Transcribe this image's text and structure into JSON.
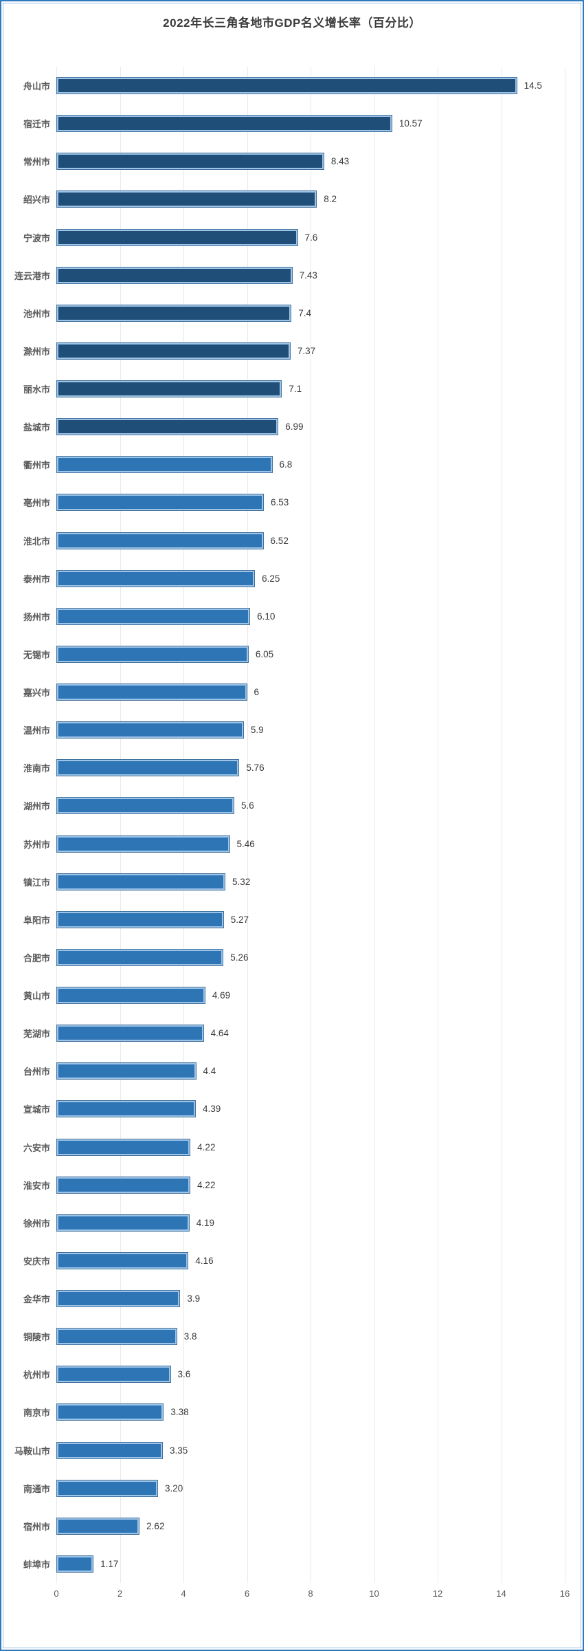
{
  "chart_data": {
    "type": "bar",
    "orientation": "horizontal",
    "title": "2022年长三角各地市GDP名义增长率（百分比）",
    "categories": [
      "舟山市",
      "宿迁市",
      "常州市",
      "绍兴市",
      "宁波市",
      "连云港市",
      "池州市",
      "滁州市",
      "丽水市",
      "盐城市",
      "衢州市",
      "亳州市",
      "淮北市",
      "泰州市",
      "扬州市",
      "无锡市",
      "嘉兴市",
      "温州市",
      "淮南市",
      "湖州市",
      "苏州市",
      "镇江市",
      "阜阳市",
      "合肥市",
      "黄山市",
      "芜湖市",
      "台州市",
      "宣城市",
      "六安市",
      "淮安市",
      "徐州市",
      "安庆市",
      "金华市",
      "铜陵市",
      "杭州市",
      "南京市",
      "马鞍山市",
      "南通市",
      "宿州市",
      "蚌埠市"
    ],
    "values": [
      14.5,
      10.57,
      8.43,
      8.2,
      7.6,
      7.43,
      7.4,
      7.37,
      7.1,
      6.99,
      6.8,
      6.53,
      6.52,
      6.25,
      6.1,
      6.05,
      6,
      5.9,
      5.76,
      5.6,
      5.46,
      5.32,
      5.27,
      5.26,
      4.69,
      4.64,
      4.4,
      4.39,
      4.22,
      4.22,
      4.19,
      4.16,
      3.9,
      3.8,
      3.6,
      3.38,
      3.35,
      3.2,
      2.62,
      1.17
    ],
    "value_labels": [
      "14.5",
      "10.57",
      "8.43",
      "8.2",
      "7.6",
      "7.43",
      "7.4",
      "7.37",
      "7.1",
      "6.99",
      "6.8",
      "6.53",
      "6.52",
      "6.25",
      "6.10",
      "6.05",
      "6",
      "5.9",
      "5.76",
      "5.6",
      "5.46",
      "5.32",
      "5.27",
      "5.26",
      "4.69",
      "4.64",
      "4.4",
      "4.39",
      "4.22",
      "4.22",
      "4.19",
      "4.16",
      "3.9",
      "3.8",
      "3.6",
      "3.38",
      "3.35",
      "3.20",
      "2.62",
      "1.17"
    ],
    "xlabel": "",
    "ylabel": "",
    "xlim": [
      0,
      16
    ],
    "x_ticks": [
      0,
      2,
      4,
      6,
      8,
      10,
      12,
      14,
      16
    ],
    "grid": true,
    "legend": "none",
    "colors": {
      "bar_dark": "#1f4e79",
      "bar_light": "#2e75b6",
      "bar_border_outer": "#41719c",
      "bar_border_inner": "#9dc3e6",
      "dark_count": 10,
      "frame_border": "#3179be",
      "gridline": "#e9e9e9",
      "category_text": "#595959",
      "value_text": "#3a3a3a",
      "title_text": "#3b3b3b"
    }
  }
}
